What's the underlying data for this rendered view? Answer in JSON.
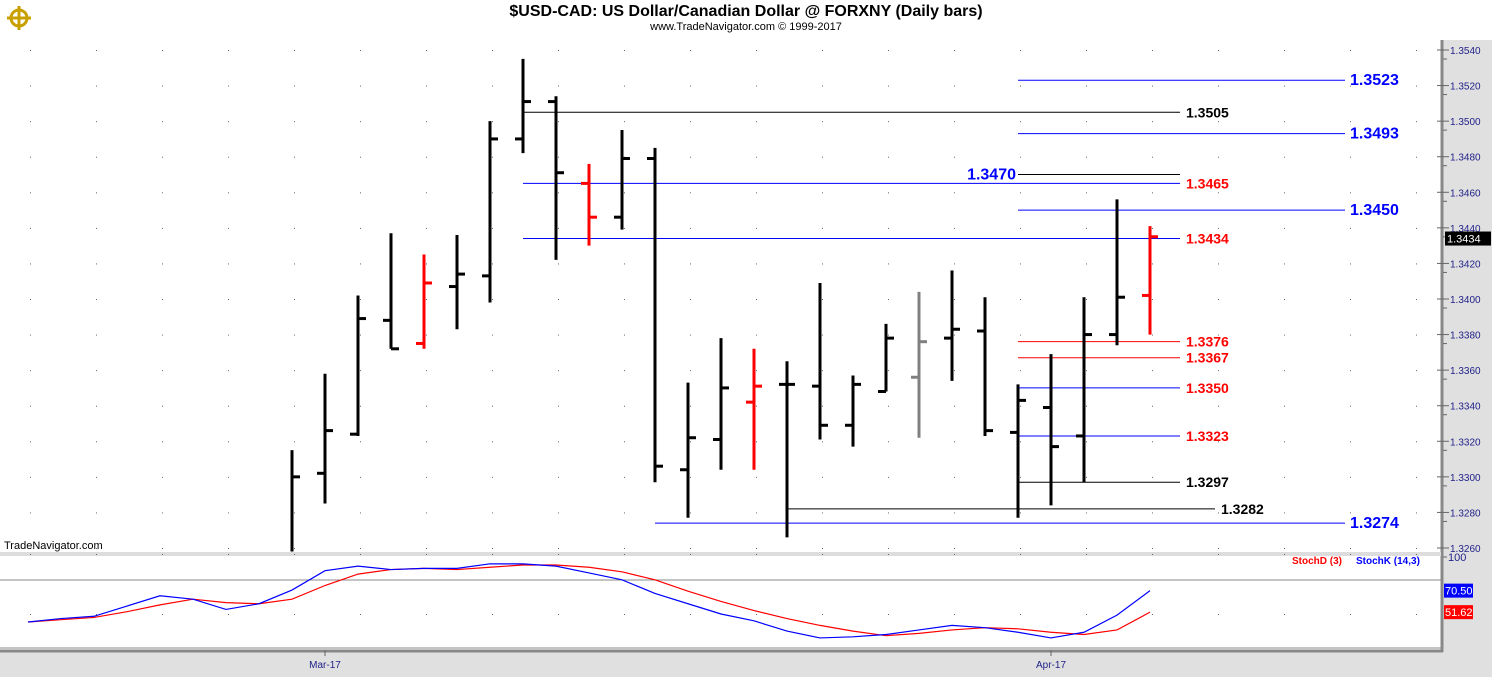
{
  "header": {
    "title": "$USD-CAD:  US Dollar/Canadian Dollar @ FORXNY  (Daily bars)",
    "subtitle": "www.TradeNavigator.com © 1999-2017",
    "watermark": "TradeNavigator.com"
  },
  "chart_data": {
    "type": "ohlc-bar",
    "yrange": [
      1.326,
      1.354
    ],
    "yticks": [
      "1.3540",
      "1.3520",
      "1.3500",
      "1.3480",
      "1.3460",
      "1.3440",
      "1.3420",
      "1.3400",
      "1.3380",
      "1.3360",
      "1.3340",
      "1.3320",
      "1.3300",
      "1.3280",
      "1.3260"
    ],
    "last_price": "1.3434",
    "xlabels": [
      {
        "label": "Mar-17",
        "bar": 1
      },
      {
        "label": "Apr-17",
        "bar": 23
      }
    ],
    "colors": {
      "up": "#000000",
      "down": "#ff0000",
      "neutral": "#808080",
      "blue": "#0000ff"
    },
    "bars": [
      {
        "o": null,
        "h": 1.3315,
        "l": 1.3258,
        "c": 1.33,
        "color": "black"
      },
      {
        "o": 1.3302,
        "h": 1.3358,
        "l": 1.3285,
        "c": 1.3326,
        "color": "black"
      },
      {
        "o": 1.3324,
        "h": 1.3402,
        "l": 1.3323,
        "c": 1.3389,
        "color": "black"
      },
      {
        "o": 1.3388,
        "h": 1.3437,
        "l": 1.3372,
        "c": 1.3372,
        "color": "black"
      },
      {
        "o": 1.3375,
        "h": 1.3425,
        "l": 1.3372,
        "c": 1.3409,
        "color": "red"
      },
      {
        "o": 1.3407,
        "h": 1.3436,
        "l": 1.3383,
        "c": 1.3414,
        "color": "black"
      },
      {
        "o": 1.3413,
        "h": 1.35,
        "l": 1.3398,
        "c": 1.349,
        "color": "black"
      },
      {
        "o": 1.349,
        "h": 1.3535,
        "l": 1.3482,
        "c": 1.3511,
        "color": "black"
      },
      {
        "o": 1.3511,
        "h": 1.3514,
        "l": 1.3422,
        "c": 1.3471,
        "color": "black"
      },
      {
        "o": 1.3465,
        "h": 1.3476,
        "l": 1.343,
        "c": 1.3446,
        "color": "red"
      },
      {
        "o": 1.3446,
        "h": 1.3495,
        "l": 1.3439,
        "c": 1.3479,
        "color": "black"
      },
      {
        "o": 1.3479,
        "h": 1.3485,
        "l": 1.3297,
        "c": 1.3306,
        "color": "black"
      },
      {
        "o": 1.3304,
        "h": 1.3353,
        "l": 1.3277,
        "c": 1.3322,
        "color": "black"
      },
      {
        "o": 1.3321,
        "h": 1.3378,
        "l": 1.3304,
        "c": 1.335,
        "color": "black"
      },
      {
        "o": 1.3342,
        "h": 1.3372,
        "l": 1.3304,
        "c": 1.3351,
        "color": "red"
      },
      {
        "o": 1.3352,
        "h": 1.3365,
        "l": 1.3266,
        "c": 1.3352,
        "color": "black"
      },
      {
        "o": 1.3351,
        "h": 1.3409,
        "l": 1.3321,
        "c": 1.3329,
        "color": "black"
      },
      {
        "o": 1.3329,
        "h": 1.3357,
        "l": 1.3317,
        "c": 1.3352,
        "color": "black"
      },
      {
        "o": 1.3348,
        "h": 1.3386,
        "l": 1.3348,
        "c": 1.3378,
        "color": "black"
      },
      {
        "o": 1.3356,
        "h": 1.3404,
        "l": 1.3322,
        "c": 1.3376,
        "color": "gray"
      },
      {
        "o": 1.3378,
        "h": 1.3416,
        "l": 1.3354,
        "c": 1.3383,
        "color": "black"
      },
      {
        "o": 1.3382,
        "h": 1.3401,
        "l": 1.3323,
        "c": 1.3326,
        "color": "black"
      },
      {
        "o": 1.3325,
        "h": 1.3352,
        "l": 1.3277,
        "c": 1.3343,
        "color": "black"
      },
      {
        "o": 1.3339,
        "h": 1.3369,
        "l": 1.3284,
        "c": 1.3317,
        "color": "black"
      },
      {
        "o": 1.3323,
        "h": 1.3401,
        "l": 1.3297,
        "c": 1.338,
        "color": "black"
      },
      {
        "o": 1.338,
        "h": 1.3456,
        "l": 1.3374,
        "c": 1.3401,
        "color": "black"
      },
      {
        "o": 1.3402,
        "h": 1.3441,
        "l": 1.338,
        "c": 1.3435,
        "color": "red"
      }
    ],
    "levels": [
      {
        "label": "1.3523",
        "price": 1.3523,
        "from": 22,
        "to": 30,
        "line": "blue",
        "text": "blue",
        "pos": "right-far"
      },
      {
        "label": "1.3505",
        "price": 1.3505,
        "from": 7,
        "to": 27,
        "line": "black",
        "text": "black",
        "pos": "right"
      },
      {
        "label": "1.3493",
        "price": 1.3493,
        "from": 22,
        "to": 30,
        "line": "blue",
        "text": "blue",
        "pos": "right-far"
      },
      {
        "label": "1.3470",
        "price": 1.347,
        "from": 22,
        "to": 30,
        "line": "black",
        "text": "blue",
        "pos": "left"
      },
      {
        "label": "1.3465",
        "price": 1.3465,
        "from": 7,
        "to": 27,
        "line": "blue",
        "text": "red",
        "pos": "right"
      },
      {
        "label": "1.3450",
        "price": 1.345,
        "from": 22,
        "to": 30,
        "line": "blue",
        "text": "blue",
        "pos": "right-far"
      },
      {
        "label": "1.3434",
        "price": 1.3434,
        "from": 7,
        "to": 27,
        "line": "blue",
        "text": "red",
        "pos": "right"
      },
      {
        "label": "1.3376",
        "price": 1.3376,
        "from": 22,
        "to": 27,
        "line": "red",
        "text": "red",
        "pos": "right"
      },
      {
        "label": "1.3367",
        "price": 1.3367,
        "from": 22,
        "to": 27,
        "line": "red",
        "text": "red",
        "pos": "right"
      },
      {
        "label": "1.3350",
        "price": 1.335,
        "from": 22,
        "to": 27,
        "line": "blue",
        "text": "red",
        "pos": "right"
      },
      {
        "label": "1.3323",
        "price": 1.3323,
        "from": 22,
        "to": 27,
        "line": "blue",
        "text": "red",
        "pos": "right"
      },
      {
        "label": "1.3297",
        "price": 1.3297,
        "from": 22,
        "to": 27,
        "line": "black",
        "text": "black",
        "pos": "right"
      },
      {
        "label": "1.3282",
        "price": 1.3282,
        "from": 15,
        "to": 28,
        "line": "black",
        "text": "black",
        "pos": "right"
      },
      {
        "label": "1.3274",
        "price": 1.3274,
        "from": 11,
        "to": 30,
        "line": "blue",
        "text": "blue",
        "pos": "right-far"
      }
    ],
    "stochastic": {
      "yrange": [
        0,
        100
      ],
      "top_label": "100",
      "start_bar": -8,
      "stochK": {
        "name": "StochK (14,3)",
        "color": "#0000ff",
        "last": "70.50",
        "values": [
          43,
          46,
          48,
          57,
          66,
          63,
          54,
          59,
          71,
          88,
          92,
          89,
          90,
          90,
          94,
          94,
          92,
          86,
          80,
          68,
          59,
          50,
          44,
          35,
          29,
          30,
          32,
          36,
          40,
          38,
          34,
          29,
          34,
          49,
          70.5
        ]
      },
      "stochD": {
        "name": "StochD (3)",
        "color": "#ff0000",
        "last": "51.62",
        "values": [
          43,
          45,
          47,
          52,
          58,
          63,
          60,
          59,
          63,
          75,
          85,
          89,
          90,
          89,
          91,
          93,
          93,
          91,
          87,
          80,
          70,
          61,
          53,
          46,
          40,
          35,
          31,
          33,
          36,
          38,
          37,
          34,
          32,
          36,
          51.62
        ]
      }
    }
  }
}
